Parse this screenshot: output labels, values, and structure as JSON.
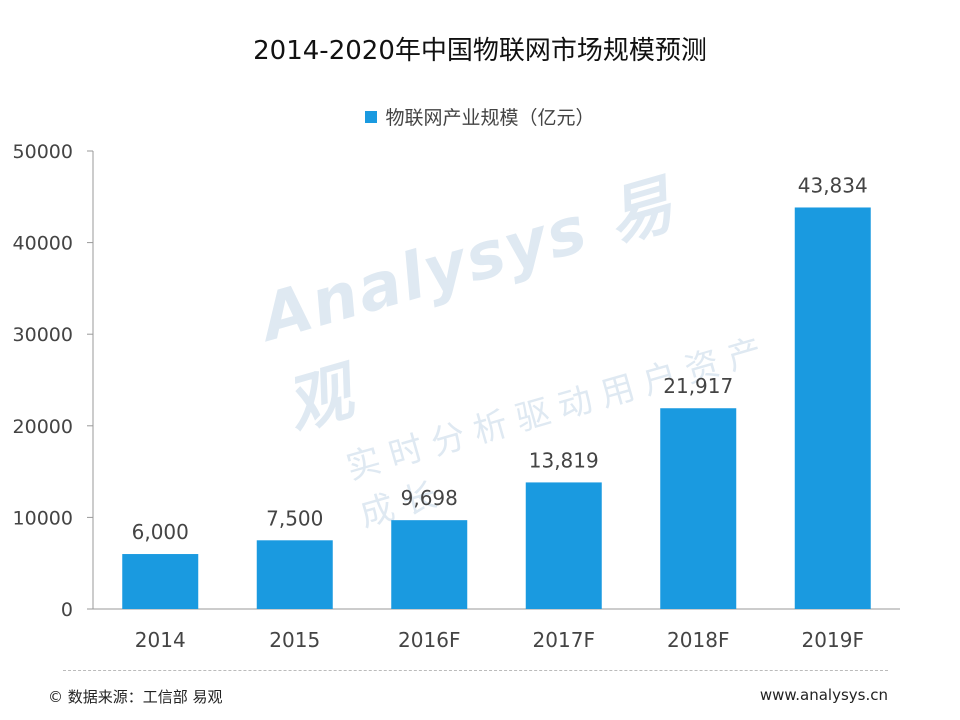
{
  "chart_data": {
    "type": "bar",
    "title": "2014-2020年中国物联网市场规模预测",
    "categories": [
      "2014",
      "2015",
      "2016F",
      "2017F",
      "2018F",
      "2019F"
    ],
    "series": [
      {
        "name": "物联网产业规模（亿元）",
        "values": [
          6000,
          7500,
          9698,
          13819,
          21917,
          43834
        ],
        "labels": [
          "6,000",
          "7,500",
          "9,698",
          "13,819",
          "21,917",
          "43,834"
        ],
        "color": "#1a9ae0"
      }
    ],
    "yticks": [
      "0",
      "10000",
      "20000",
      "30000",
      "40000",
      "50000"
    ],
    "ylim": [
      0,
      50000
    ],
    "grid": false,
    "legend_position": "top-center"
  },
  "watermark": {
    "brand": "Analysys 易观",
    "slogan": "实时分析驱动用户资产成长"
  },
  "footer": {
    "source": "© 数据来源：工信部 易观",
    "website": "www.analysys.cn"
  }
}
